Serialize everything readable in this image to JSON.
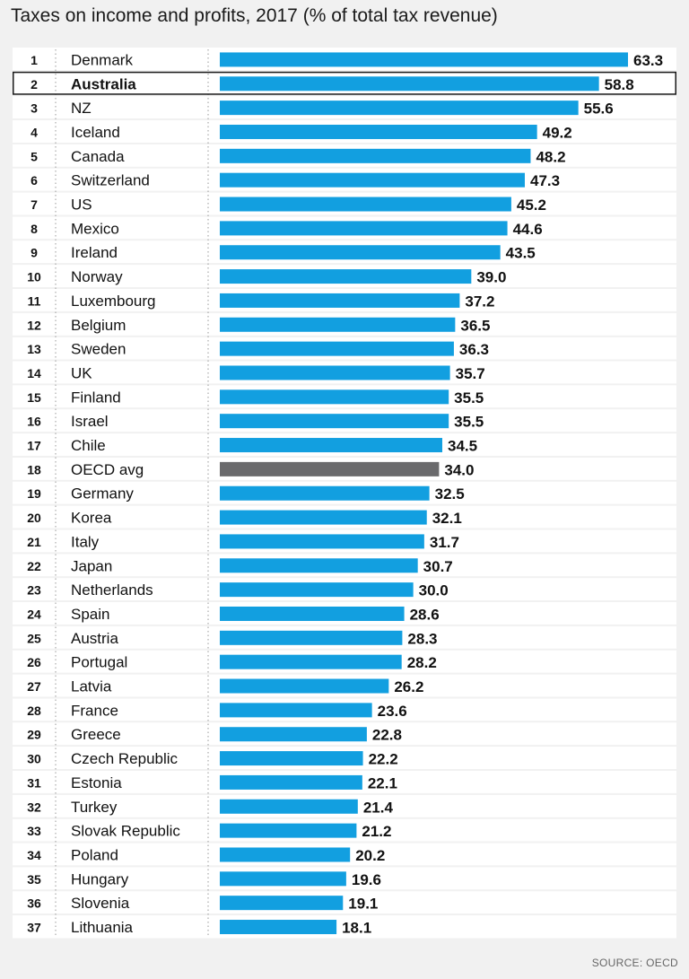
{
  "chart_data": {
    "type": "bar",
    "orientation": "horizontal",
    "title": "Taxes on income and profits, 2017 (% of total tax revenue)",
    "source": "SOURCE: OECD",
    "ranks": [
      "1",
      "2",
      "3",
      "4",
      "5",
      "6",
      "7",
      "8",
      "9",
      "10",
      "11",
      "12",
      "13",
      "14",
      "15",
      "16",
      "17",
      "18",
      "19",
      "20",
      "21",
      "22",
      "23",
      "24",
      "25",
      "26",
      "27",
      "28",
      "29",
      "30",
      "31",
      "32",
      "33",
      "34",
      "35",
      "36",
      "37"
    ],
    "categories": [
      "Denmark",
      "Australia",
      "NZ",
      "Iceland",
      "Canada",
      "Switzerland",
      "US",
      "Mexico",
      "Ireland",
      "Norway",
      "Luxembourg",
      "Belgium",
      "Sweden",
      "UK",
      "Finland",
      "Israel",
      "Chile",
      "OECD avg",
      "Germany",
      "Korea",
      "Italy",
      "Japan",
      "Netherlands",
      "Spain",
      "Austria",
      "Portugal",
      "Latvia",
      "France",
      "Greece",
      "Czech Republic",
      "Estonia",
      "Turkey",
      "Slovak Republic",
      "Poland",
      "Hungary",
      "Slovenia",
      "Lithuania"
    ],
    "values": [
      63.3,
      58.8,
      55.6,
      49.2,
      48.2,
      47.3,
      45.2,
      44.6,
      43.5,
      39.0,
      37.2,
      36.5,
      36.3,
      35.7,
      35.5,
      35.5,
      34.5,
      34.0,
      32.5,
      32.1,
      31.7,
      30.7,
      30.0,
      28.6,
      28.3,
      28.2,
      26.2,
      23.6,
      22.8,
      22.2,
      22.1,
      21.4,
      21.2,
      20.2,
      19.6,
      19.1,
      18.1
    ],
    "value_labels": [
      "63.3",
      "58.8",
      "55.6",
      "49.2",
      "48.2",
      "47.3",
      "45.2",
      "44.6",
      "43.5",
      "39.0",
      "37.2",
      "36.5",
      "36.3",
      "35.7",
      "35.5",
      "35.5",
      "34.5",
      "34.0",
      "32.5",
      "32.1",
      "31.7",
      "30.7",
      "30.0",
      "28.6",
      "28.3",
      "28.2",
      "26.2",
      "23.6",
      "22.8",
      "22.2",
      "22.1",
      "21.4",
      "21.2",
      "20.2",
      "19.6",
      "19.1",
      "18.1"
    ],
    "highlighted": "Australia",
    "average_category": "OECD avg",
    "xlim": [
      0,
      63.3
    ],
    "colors": {
      "bar": "#129fe0",
      "average_bar": "#6a6a6c",
      "row_light": "#ffffff",
      "row_alt": "#f1f1f1",
      "highlight_border": "#1a1a1a"
    }
  }
}
